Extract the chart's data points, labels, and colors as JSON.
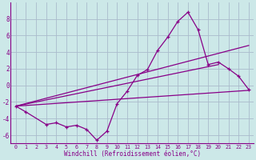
{
  "background_color": "#cce8e8",
  "grid_color": "#aabbcc",
  "line_color": "#880088",
  "xlabel": "Windchill (Refroidissement éolien,°C)",
  "xlim": [
    -0.5,
    23.5
  ],
  "ylim": [
    -7,
    10
  ],
  "yticks": [
    -6,
    -4,
    -2,
    0,
    2,
    4,
    6,
    8
  ],
  "xticks": [
    0,
    1,
    2,
    3,
    4,
    5,
    6,
    7,
    8,
    9,
    10,
    11,
    12,
    13,
    14,
    15,
    16,
    17,
    18,
    19,
    20,
    21,
    22,
    23
  ],
  "series_marker": {
    "x": [
      0,
      1,
      3,
      4,
      5,
      6,
      7,
      8,
      9,
      10,
      11,
      12,
      13,
      14,
      15,
      16,
      17,
      18,
      19,
      20,
      21,
      22,
      23
    ],
    "y": [
      -2.5,
      -3.2,
      -4.7,
      -4.5,
      -5.0,
      -4.8,
      -5.3,
      -6.6,
      -5.5,
      -2.2,
      -0.7,
      1.2,
      1.9,
      4.2,
      5.8,
      7.7,
      8.8,
      6.7,
      2.5,
      2.8,
      2.0,
      1.1,
      -0.5
    ]
  },
  "line1": {
    "x": [
      0,
      23
    ],
    "y": [
      -2.5,
      -0.6
    ]
  },
  "line2": {
    "x": [
      0,
      23
    ],
    "y": [
      -2.5,
      4.8
    ]
  },
  "line3": {
    "x": [
      0,
      20
    ],
    "y": [
      -2.5,
      2.5
    ]
  }
}
